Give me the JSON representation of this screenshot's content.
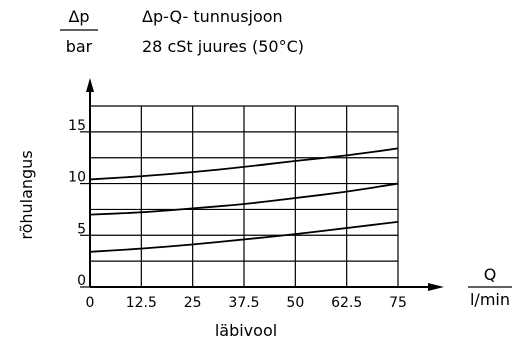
{
  "chart_data": {
    "type": "line",
    "title": "Δp-Q- tunnusjoon",
    "subtitle": "28 cSt juures (50°C)",
    "y_unit_top": "Δp",
    "y_unit_bottom": "bar",
    "ylabel": "rõhulangus",
    "x_unit_top": "Q",
    "x_unit_bottom": "l/min",
    "xlabel": "läbivool",
    "xlim": [
      0,
      75
    ],
    "ylim": [
      0,
      17.5
    ],
    "x_ticks": [
      "0",
      "12.5",
      "25",
      "37.5",
      "50",
      "62.5",
      "75"
    ],
    "x_tick_values": [
      0,
      12.5,
      25,
      37.5,
      50,
      62.5,
      75
    ],
    "y_ticks": [
      "0",
      "5",
      "10",
      "15"
    ],
    "y_tick_values": [
      0,
      5,
      10,
      15
    ],
    "grid": true,
    "x": [
      0,
      12.5,
      25,
      37.5,
      50,
      62.5,
      75
    ],
    "series": [
      {
        "values": [
          3.4,
          3.7,
          4.1,
          4.6,
          5.1,
          5.7,
          6.3
        ]
      },
      {
        "values": [
          7.0,
          7.2,
          7.6,
          8.0,
          8.6,
          9.2,
          10.0
        ]
      },
      {
        "values": [
          10.4,
          10.7,
          11.1,
          11.6,
          12.2,
          12.7,
          13.4
        ]
      }
    ]
  }
}
